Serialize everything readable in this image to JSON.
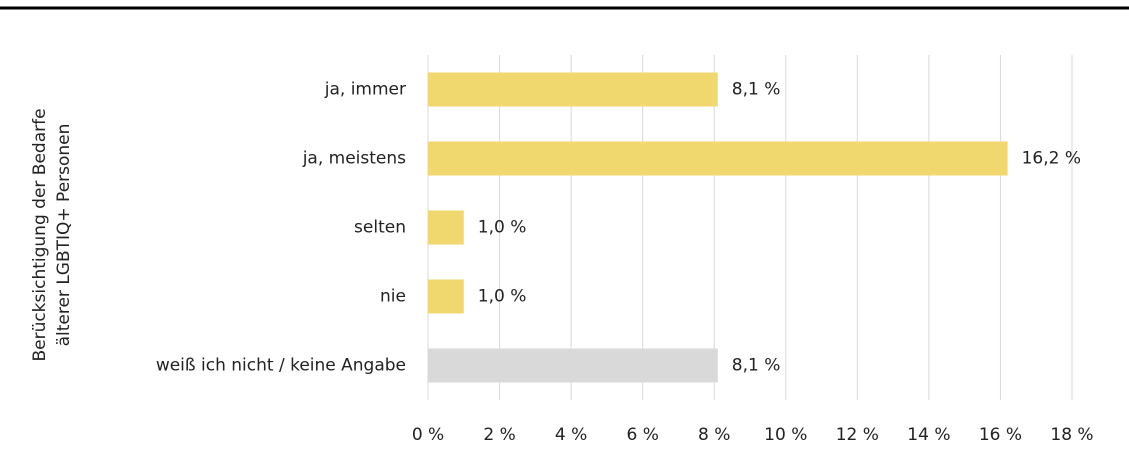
{
  "chart_data": {
    "type": "hbar",
    "ylabel": [
      "Berücksichtigung der Bedarfe",
      "älterer LGBTIQ+ Personen"
    ],
    "categories": [
      "ja, immer",
      "ja, meistens",
      "selten",
      "nie",
      "weiß ich nicht / keine Angabe"
    ],
    "values": [
      8.1,
      16.2,
      1.0,
      1.0,
      8.1
    ],
    "value_labels": [
      "8,1 %",
      "16,2 %",
      "1,0 %",
      "1,0 %",
      "8,1 %"
    ],
    "colors": [
      "#f0d86e",
      "#f0d86e",
      "#f0d86e",
      "#f0d86e",
      "#d9d9d9"
    ],
    "xlim": [
      0,
      18
    ],
    "xticks": [
      {
        "value": 0,
        "label": "0 %"
      },
      {
        "value": 2,
        "label": "2 %"
      },
      {
        "value": 4,
        "label": "4 %"
      },
      {
        "value": 6,
        "label": "6 %"
      },
      {
        "value": 8,
        "label": "8 %"
      },
      {
        "value": 10,
        "label": "10 %"
      },
      {
        "value": 12,
        "label": "12 %"
      },
      {
        "value": 14,
        "label": "14 %"
      },
      {
        "value": 16,
        "label": "16 %"
      },
      {
        "value": 18,
        "label": "18 %"
      }
    ],
    "grid": true
  }
}
